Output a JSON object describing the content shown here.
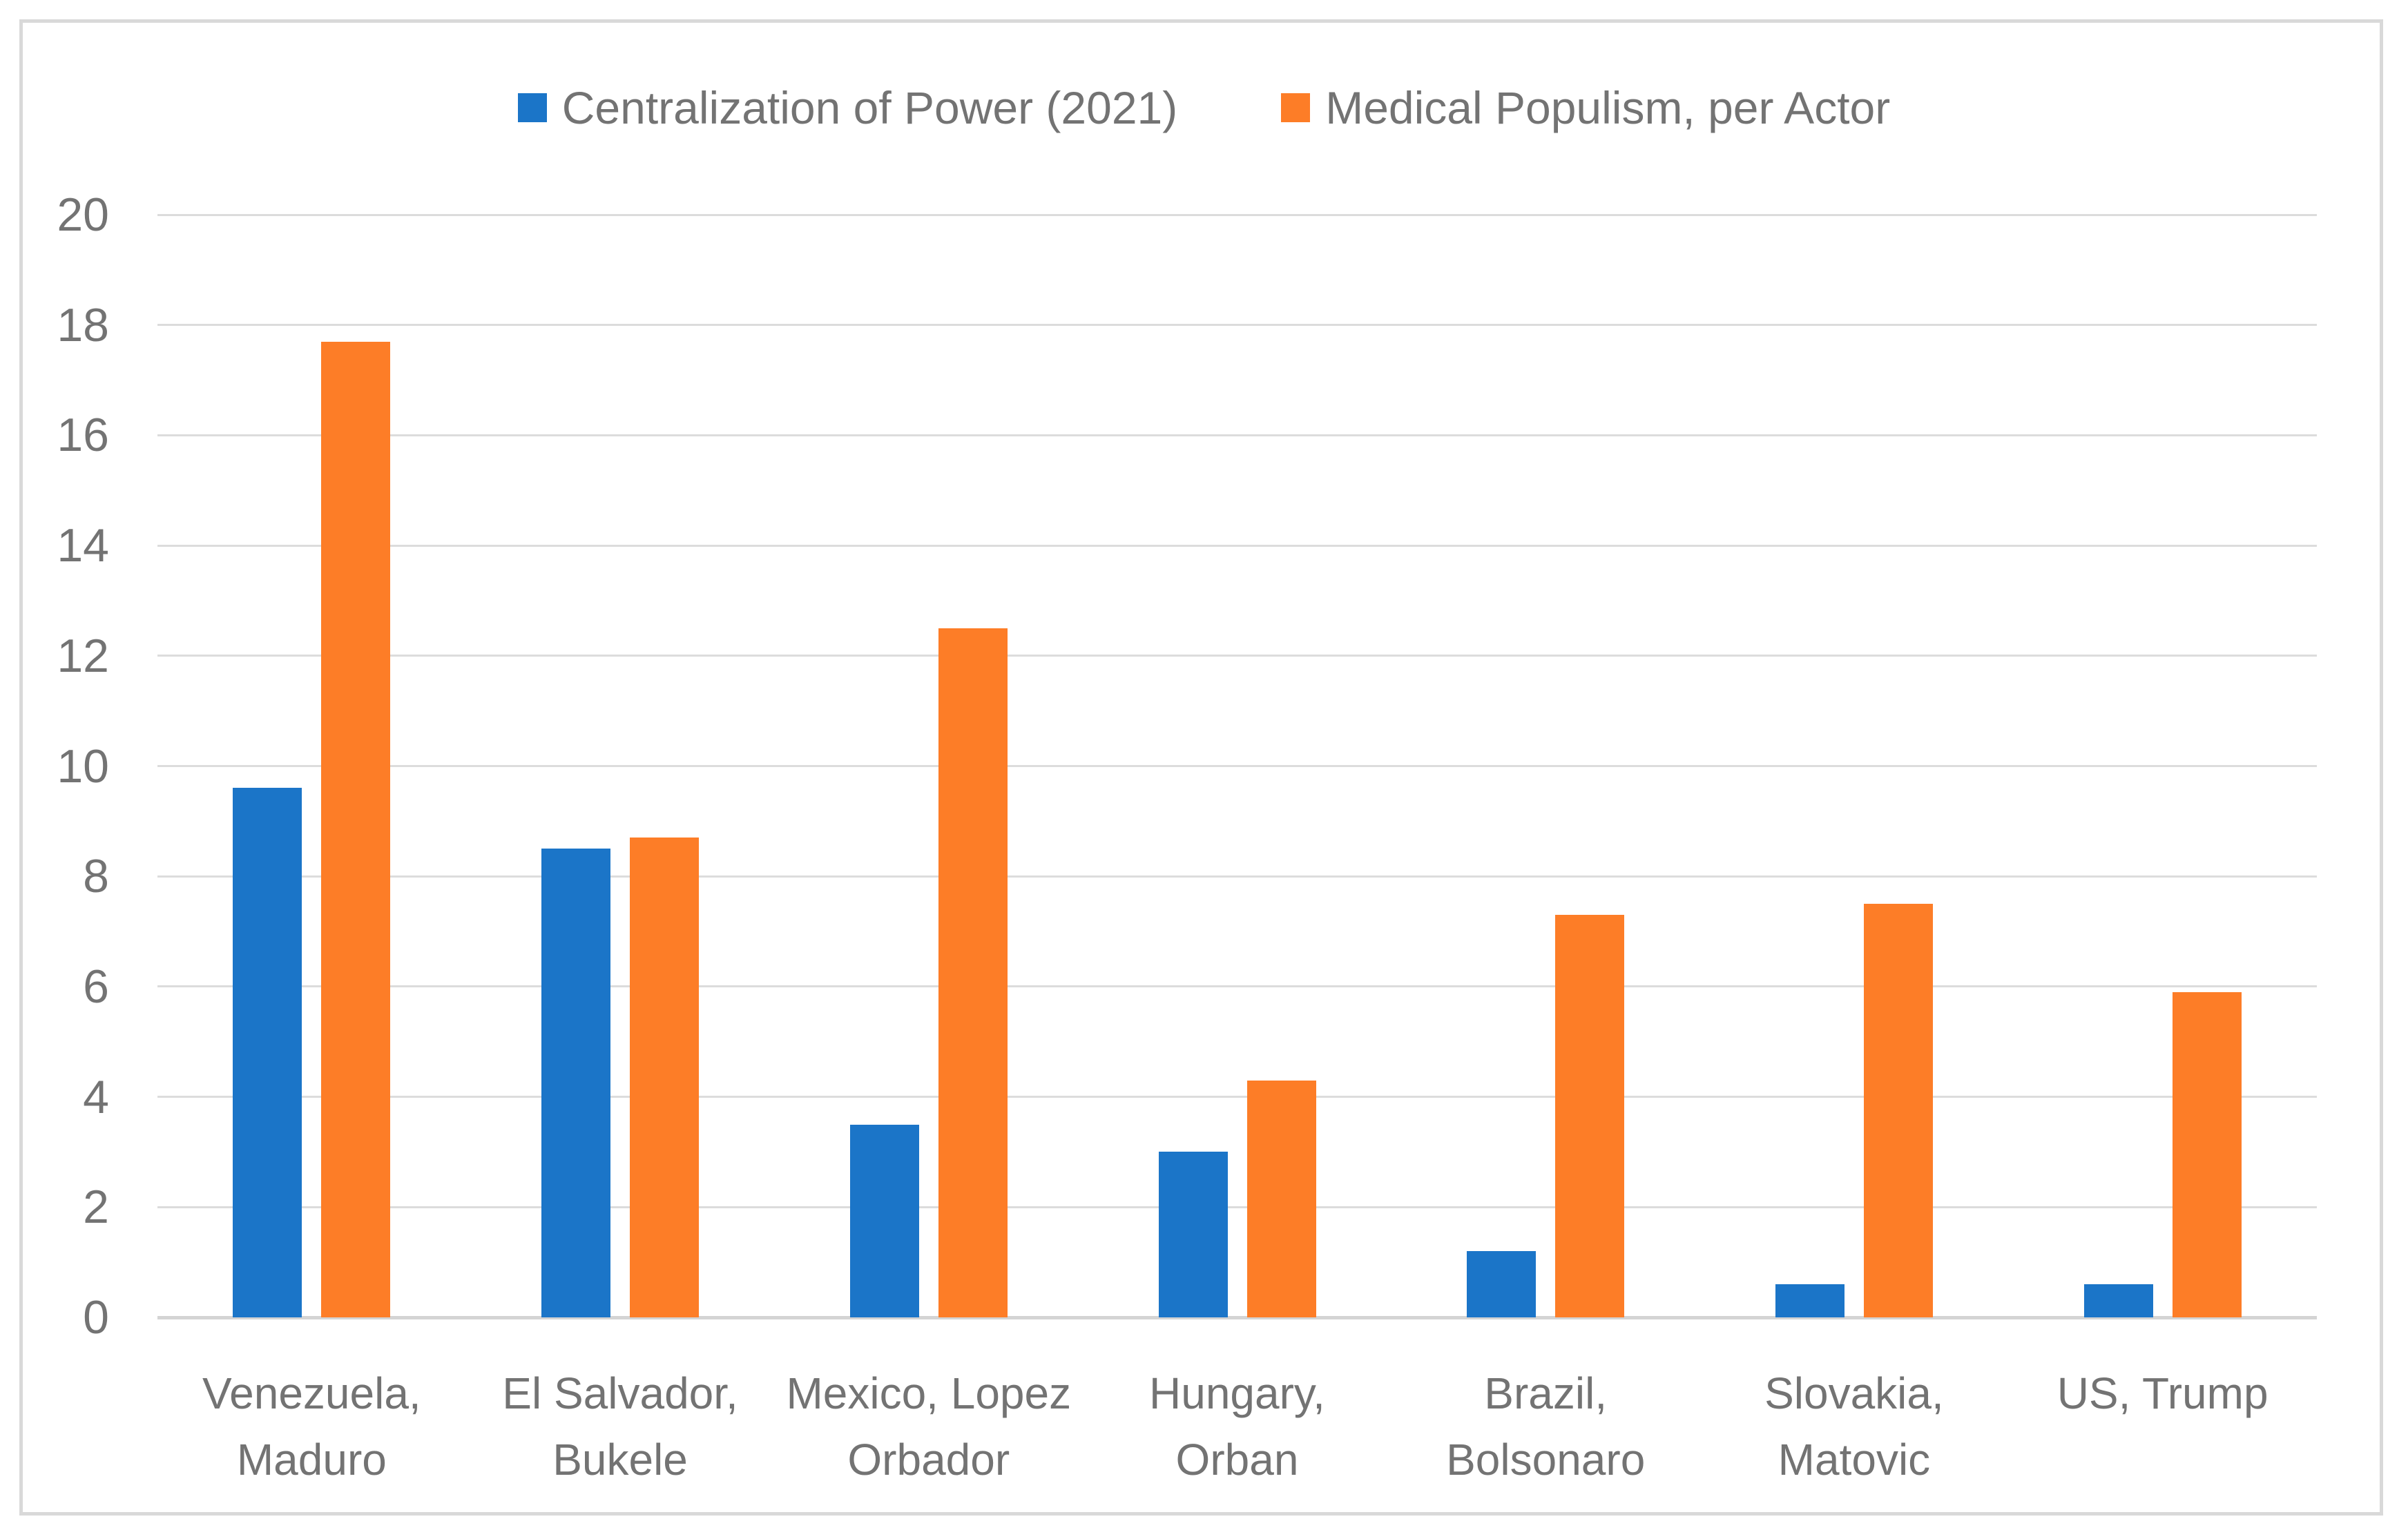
{
  "colors": {
    "series_blue": "#1B75C8",
    "series_orange": "#FD7D27",
    "gridline": "#DCDCDC",
    "axis_line": "#D4D4D4",
    "frame_border": "#D9D9D9",
    "label_text": "#737373",
    "background": "#FFFFFF"
  },
  "legend": {
    "position": "top-center",
    "items": [
      {
        "label": "Centralization of Power (2021)",
        "color": "#1B75C8"
      },
      {
        "label": "Medical Populism, per Actor",
        "color": "#FD7D27"
      }
    ]
  },
  "chart_data": {
    "type": "bar",
    "title": "",
    "xlabel": "",
    "ylabel": "",
    "ylim": [
      0,
      20
    ],
    "y_ticks": [
      0,
      2,
      4,
      6,
      8,
      10,
      12,
      14,
      16,
      18,
      20
    ],
    "grid": true,
    "legend_position": "top",
    "categories": [
      "Venezuela, Maduro",
      "El Salvador, Bukele",
      "Mexico, Lopez Orbador",
      "Hungary, Orban",
      "Brazil, Bolsonaro",
      "Slovakia, Matovic",
      "US, Trump"
    ],
    "category_label_lines": [
      [
        "Venezuela,",
        "Maduro"
      ],
      [
        "El Salvador,",
        "Bukele"
      ],
      [
        "Mexico, Lopez",
        "Orbador"
      ],
      [
        "Hungary,",
        "Orban"
      ],
      [
        "Brazil,",
        "Bolsonaro"
      ],
      [
        "Slovakia,",
        "Matovic"
      ],
      [
        "US, Trump"
      ]
    ],
    "series": [
      {
        "name": "Centralization of Power (2021)",
        "color": "#1B75C8",
        "values": [
          9.6,
          8.5,
          3.5,
          3.0,
          1.2,
          0.6,
          0.6
        ]
      },
      {
        "name": "Medical Populism, per Actor",
        "color": "#FD7D27",
        "values": [
          17.7,
          8.7,
          12.5,
          4.3,
          7.3,
          7.5,
          5.9
        ]
      }
    ]
  }
}
